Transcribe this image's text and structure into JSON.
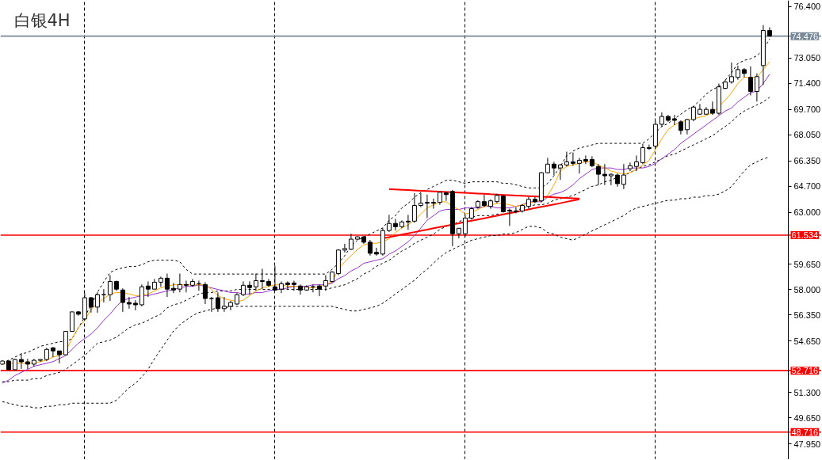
{
  "chart_data": {
    "type": "candlestick",
    "title": "白银4H",
    "tick_labels": "y",
    "grid": "x",
    "categories": [
      null,
      null,
      null,
      null,
      null,
      null,
      null,
      null,
      null,
      null,
      null,
      null,
      null,
      null,
      null,
      null,
      null,
      null,
      null,
      null,
      null,
      null,
      null,
      null,
      null,
      null,
      null,
      null,
      null,
      null,
      null,
      null,
      null,
      null,
      null,
      null,
      null,
      null,
      null,
      null,
      null,
      null,
      null,
      null,
      null,
      null,
      null,
      null,
      null,
      null,
      null,
      null,
      null,
      null,
      null,
      null,
      null,
      null,
      null,
      null,
      null,
      null,
      null,
      null,
      null,
      null,
      null,
      null,
      null,
      null,
      null,
      null,
      null,
      null,
      null,
      null,
      null,
      null,
      null,
      null,
      null,
      null,
      null,
      null,
      null,
      null,
      null,
      null,
      null,
      null,
      null,
      null,
      null,
      null,
      null,
      null,
      null,
      null,
      null,
      null,
      null,
      null,
      null,
      null,
      null,
      null,
      null,
      null,
      null,
      null,
      null,
      null,
      null,
      null,
      null,
      null,
      null,
      null,
      null,
      null,
      null,
      null
    ],
    "series": [
      {
        "type": "line",
        "color": "#000000",
        "line_style": "dashed",
        "values": [
          53.2,
          53.4,
          53.6,
          53.8,
          53.9,
          54.1,
          54.3,
          54.4,
          54.5,
          54.6,
          54.6,
          54.8,
          55.5,
          56.2,
          57.0,
          57.8,
          58.5,
          59.1,
          59.3,
          59.4,
          59.5,
          59.5,
          59.6,
          59.8,
          59.9,
          59.9,
          59.9,
          59.9,
          59.8,
          59.3,
          59.0,
          59.0,
          59.0,
          59.0,
          59.0,
          59.0,
          59.0,
          59.0,
          59.0,
          59.0,
          59.0,
          59.0,
          59.0,
          59.0,
          59.0,
          59.0,
          59.0,
          59.0,
          59.0,
          59.0,
          59.0,
          59.0,
          59.3,
          59.7,
          60.2,
          60.8,
          61.2,
          61.4,
          61.6,
          61.8,
          62.0,
          62.5,
          62.8,
          63.3,
          63.6,
          64.0,
          64.3,
          64.5,
          64.7,
          64.9,
          65.1,
          65.1,
          65.0,
          64.9,
          65.0,
          65.0,
          65.0,
          65.0,
          65.0,
          64.9,
          64.9,
          64.8,
          64.7,
          64.6,
          64.6,
          64.6,
          64.9,
          65.4,
          66.0,
          66.7,
          67.0,
          67.2,
          67.3,
          67.4,
          67.5,
          67.5,
          67.5,
          67.5,
          67.5,
          67.5,
          67.5,
          67.5,
          67.8,
          68.2,
          68.6,
          68.8,
          69.1,
          69.4,
          69.7,
          69.9,
          70.3,
          70.7,
          71.0,
          71.2,
          71.6,
          72.1,
          72.7,
          72.9,
          73.0,
          73.2,
          73.6,
          74.3
        ]
      },
      {
        "type": "line",
        "color": "#000000",
        "line_style": "dashed",
        "values": [
          52.0,
          52.0,
          52.1,
          52.1,
          52.1,
          52.2,
          52.2,
          52.4,
          52.5,
          52.6,
          52.8,
          53.1,
          53.4,
          53.7,
          54.1,
          54.5,
          54.6,
          54.7,
          54.9,
          55.2,
          55.5,
          55.7,
          55.8,
          56.0,
          56.2,
          56.4,
          56.8,
          57.0,
          57.1,
          57.3,
          57.5,
          57.7,
          57.8,
          57.8,
          57.9,
          57.9,
          57.9,
          58.0,
          58.0,
          58.0,
          58.0,
          58.0,
          58.0,
          58.0,
          58.0,
          58.0,
          58.0,
          58.0,
          58.0,
          58.0,
          58.0,
          58.0,
          58.1,
          58.2,
          58.3,
          58.5,
          58.7,
          59.0,
          59.2,
          59.5,
          59.7,
          59.9,
          60.2,
          60.5,
          60.7,
          61.0,
          61.2,
          61.4,
          61.6,
          61.9,
          62.1,
          62.2,
          62.4,
          62.6,
          62.7,
          62.8,
          62.8,
          62.8,
          62.9,
          62.9,
          63.0,
          63.1,
          63.3,
          63.4,
          63.5,
          63.5,
          63.6,
          63.8,
          63.9,
          64.0,
          64.1,
          64.3,
          64.5,
          64.7,
          64.8,
          65.0,
          65.1,
          65.3,
          65.4,
          65.6,
          65.8,
          66.0,
          66.1,
          66.3,
          66.5,
          66.7,
          66.8,
          67.0,
          67.2,
          67.4,
          67.6,
          67.8,
          68.0,
          68.3,
          68.6,
          68.9,
          69.3,
          69.6,
          69.8,
          70.0,
          70.2,
          70.5
        ]
      },
      {
        "type": "line",
        "color": "#000000",
        "line_style": "dashed",
        "values": [
          50.7,
          50.6,
          50.5,
          50.4,
          50.4,
          50.3,
          50.3,
          50.4,
          50.4,
          50.5,
          50.5,
          50.6,
          50.6,
          50.6,
          50.6,
          50.6,
          50.6,
          50.6,
          50.8,
          51.2,
          51.6,
          51.9,
          52.3,
          52.8,
          53.5,
          54.1,
          54.7,
          55.3,
          55.7,
          56.0,
          56.3,
          56.5,
          56.6,
          56.7,
          56.8,
          56.8,
          56.9,
          56.9,
          56.9,
          56.9,
          56.9,
          56.9,
          56.9,
          56.9,
          56.9,
          56.9,
          56.9,
          56.9,
          56.9,
          56.9,
          56.9,
          56.9,
          56.9,
          56.8,
          56.7,
          56.6,
          56.6,
          56.7,
          56.8,
          56.9,
          57.1,
          57.4,
          57.7,
          58.0,
          58.3,
          58.6,
          59.0,
          59.3,
          59.7,
          60.1,
          60.4,
          60.6,
          60.8,
          61.0,
          61.2,
          61.3,
          61.4,
          61.5,
          61.5,
          61.6,
          61.6,
          61.7,
          61.9,
          62.1,
          62.1,
          62.0,
          61.7,
          61.6,
          61.4,
          61.3,
          61.2,
          61.4,
          61.6,
          61.8,
          62.0,
          62.2,
          62.4,
          62.6,
          62.8,
          63.1,
          63.3,
          63.4,
          63.5,
          63.6,
          63.7,
          63.8,
          63.8,
          63.9,
          63.9,
          64.0,
          64.0,
          64.1,
          64.1,
          64.2,
          64.4,
          64.7,
          65.2,
          65.7,
          66.1,
          66.3,
          66.5,
          66.6
        ]
      },
      {
        "type": "line",
        "color": "#9932cc",
        "line_style": "solid",
        "values": [
          51.9,
          52.1,
          52.4,
          52.6,
          52.8,
          53.0,
          53.1,
          53.2,
          53.3,
          53.5,
          53.7,
          54.1,
          54.5,
          54.8,
          55.1,
          55.5,
          56.0,
          56.4,
          56.9,
          57.3,
          57.4,
          57.5,
          57.6,
          57.6,
          57.7,
          57.8,
          57.9,
          58.0,
          58.1,
          58.2,
          58.2,
          58.3,
          58.2,
          58.1,
          58.0,
          57.9,
          57.8,
          57.8,
          57.7,
          57.7,
          57.8,
          57.8,
          57.9,
          58.0,
          58.0,
          58.1,
          58.2,
          58.2,
          58.2,
          58.3,
          58.3,
          58.3,
          58.4,
          58.7,
          58.9,
          59.2,
          59.4,
          59.7,
          59.8,
          59.9,
          60.0,
          60.3,
          60.5,
          60.8,
          61.1,
          61.5,
          62.0,
          62.5,
          62.8,
          63.1,
          63.2,
          63.2,
          63.2,
          63.3,
          63.3,
          63.3,
          63.4,
          63.4,
          63.3,
          63.3,
          63.3,
          63.4,
          63.5,
          63.7,
          63.7,
          63.7,
          64.0,
          64.2,
          64.3,
          64.5,
          64.8,
          65.2,
          65.5,
          65.8,
          65.9,
          65.9,
          65.9,
          65.8,
          65.8,
          65.9,
          65.9,
          65.9,
          66.0,
          66.2,
          66.5,
          66.8,
          67.1,
          67.5,
          67.8,
          68.1,
          68.4,
          68.7,
          69.0,
          69.3,
          69.6,
          69.8,
          70.2,
          70.5,
          70.8,
          70.9,
          71.4,
          72.0
        ]
      },
      {
        "type": "line",
        "color": "#ffa500",
        "line_style": "solid",
        "values": [
          53.2,
          53.2,
          53.2,
          53.2,
          53.2,
          53.2,
          53.3,
          53.4,
          53.6,
          53.7,
          54.0,
          54.8,
          55.5,
          56.0,
          56.7,
          57.1,
          57.4,
          57.7,
          57.8,
          57.8,
          57.7,
          57.6,
          57.6,
          57.7,
          57.9,
          58.1,
          58.2,
          58.3,
          58.3,
          58.3,
          58.3,
          58.3,
          58.3,
          58.0,
          57.6,
          57.4,
          57.3,
          57.2,
          57.3,
          57.6,
          57.9,
          58.1,
          58.2,
          58.3,
          58.3,
          58.2,
          58.2,
          58.2,
          58.1,
          58.1,
          58.2,
          58.3,
          58.5,
          59.3,
          59.8,
          60.2,
          60.6,
          60.9,
          61.0,
          61.0,
          61.1,
          61.3,
          61.7,
          62.0,
          62.2,
          62.5,
          62.9,
          63.3,
          63.5,
          63.7,
          63.7,
          63.4,
          63.2,
          62.9,
          63.0,
          63.2,
          63.4,
          63.5,
          63.6,
          63.6,
          63.5,
          63.4,
          63.5,
          63.6,
          63.7,
          63.8,
          64.1,
          64.8,
          65.7,
          66.0,
          66.1,
          66.2,
          66.3,
          66.3,
          66.1,
          65.9,
          65.7,
          65.6,
          65.5,
          65.6,
          65.8,
          66.1,
          66.4,
          67.1,
          67.8,
          68.4,
          68.7,
          68.9,
          69.0,
          69.1,
          69.2,
          69.3,
          69.5,
          69.9,
          70.3,
          70.8,
          71.4,
          71.8,
          71.8,
          71.8,
          72.3,
          72.8
        ]
      },
      {
        "type": "line",
        "color": "#ff0000",
        "line_style": "solid",
        "values": [
          null,
          null,
          null,
          null,
          null,
          null,
          null,
          null,
          null,
          null,
          null,
          null,
          null,
          null,
          null,
          null,
          null,
          null,
          null,
          null,
          null,
          null,
          null,
          null,
          null,
          null,
          null,
          null,
          null,
          null,
          null,
          null,
          null,
          null,
          null,
          null,
          null,
          null,
          null,
          null,
          null,
          null,
          null,
          null,
          null,
          null,
          null,
          null,
          null,
          null,
          null,
          null,
          null,
          null,
          null,
          null,
          null,
          null,
          null,
          null,
          null,
          64.52,
          64.5,
          64.48,
          64.46,
          64.44,
          64.42,
          64.4,
          64.38,
          64.36,
          64.34,
          64.32,
          64.3,
          64.28,
          64.26,
          64.24,
          64.22,
          64.19,
          64.17,
          64.15,
          64.13,
          64.11,
          64.09,
          64.07,
          64.05,
          64.03,
          64.01,
          63.99,
          63.97,
          63.95,
          63.93,
          63.91,
          null,
          null,
          null,
          null,
          null,
          null,
          null,
          null,
          null,
          null,
          null,
          null,
          null,
          null,
          null,
          null,
          null,
          null,
          null,
          null,
          null,
          null,
          null,
          null,
          null,
          null,
          null,
          null,
          null,
          null
        ]
      },
      {
        "type": "line",
        "color": "#ff0000",
        "line_style": "solid",
        "values": [
          null,
          null,
          null,
          null,
          null,
          null,
          null,
          null,
          null,
          null,
          null,
          null,
          null,
          null,
          null,
          null,
          null,
          null,
          null,
          null,
          null,
          null,
          null,
          null,
          null,
          null,
          null,
          null,
          null,
          null,
          null,
          null,
          null,
          null,
          null,
          null,
          null,
          null,
          null,
          null,
          null,
          null,
          null,
          null,
          null,
          null,
          null,
          null,
          null,
          null,
          null,
          null,
          null,
          null,
          null,
          null,
          null,
          null,
          null,
          null,
          61.32,
          61.4,
          61.48,
          61.57,
          61.65,
          61.73,
          61.81,
          61.89,
          61.98,
          62.06,
          62.14,
          62.22,
          62.3,
          62.39,
          62.47,
          62.55,
          62.63,
          62.71,
          62.79,
          62.88,
          62.96,
          63.04,
          63.12,
          63.2,
          63.29,
          63.37,
          63.45,
          63.53,
          63.61,
          63.7,
          63.78,
          63.86,
          null,
          null,
          null,
          null,
          null,
          null,
          null,
          null,
          null,
          null,
          null,
          null,
          null,
          null,
          null,
          null,
          null,
          null,
          null,
          null,
          null,
          null,
          null,
          null,
          null,
          null,
          null,
          null,
          null,
          null
        ]
      },
      {
        "color": "#000000",
        "ohlc": [
          [
            53.14,
            53.39,
            53.09,
            53.34
          ],
          [
            53.34,
            53.39,
            52.78,
            52.78
          ],
          [
            52.78,
            53.49,
            52.78,
            53.44
          ],
          [
            53.44,
            53.85,
            52.83,
            53.29
          ],
          [
            53.29,
            53.49,
            52.83,
            53.14
          ],
          [
            53.14,
            53.49,
            52.98,
            53.39
          ],
          [
            53.39,
            53.44,
            53.29,
            53.44
          ],
          [
            53.44,
            54.2,
            53.34,
            54.1
          ],
          [
            54.2,
            54.25,
            53.59,
            54.0
          ],
          [
            54.0,
            54.0,
            53.19,
            53.75
          ],
          [
            53.75,
            55.27,
            53.75,
            55.27
          ],
          [
            55.27,
            56.54,
            55.27,
            56.54
          ],
          [
            56.54,
            56.59,
            56.29,
            56.39
          ],
          [
            56.08,
            57.76,
            55.98,
            57.46
          ],
          [
            57.46,
            57.51,
            56.49,
            56.85
          ],
          [
            56.85,
            57.81,
            56.49,
            57.66
          ],
          [
            57.66,
            58.02,
            57.15,
            57.66
          ],
          [
            57.66,
            58.93,
            57.25,
            58.52
          ],
          [
            58.52,
            58.57,
            57.91,
            58.02
          ],
          [
            57.96,
            58.07,
            56.54,
            57.15
          ],
          [
            57.15,
            57.51,
            56.75,
            57.05
          ],
          [
            57.1,
            57.3,
            56.64,
            57.0
          ],
          [
            57.0,
            58.32,
            56.9,
            58.17
          ],
          [
            58.22,
            58.52,
            57.51,
            58.02
          ],
          [
            58.02,
            58.68,
            58.02,
            58.47
          ],
          [
            58.47,
            58.83,
            58.17,
            58.73
          ],
          [
            58.73,
            59.03,
            57.51,
            58.02
          ],
          [
            58.07,
            58.42,
            57.76,
            57.96
          ],
          [
            58.02,
            59.03,
            57.81,
            58.32
          ],
          [
            58.32,
            58.57,
            57.81,
            58.27
          ],
          [
            58.27,
            58.68,
            58.17,
            58.52
          ],
          [
            58.37,
            58.57,
            57.91,
            58.37
          ],
          [
            58.32,
            58.47,
            57.05,
            57.41
          ],
          [
            57.41,
            57.51,
            56.54,
            57.41
          ],
          [
            57.46,
            57.81,
            56.54,
            56.75
          ],
          [
            56.75,
            57.51,
            56.54,
            56.9
          ],
          [
            56.9,
            57.25,
            56.64,
            57.15
          ],
          [
            57.05,
            57.76,
            57.0,
            57.66
          ],
          [
            57.66,
            58.52,
            57.56,
            58.27
          ],
          [
            58.27,
            58.52,
            57.66,
            58.12
          ],
          [
            58.17,
            59.03,
            57.91,
            58.57
          ],
          [
            58.57,
            59.34,
            58.02,
            58.52
          ],
          [
            58.52,
            58.68,
            58.17,
            58.27
          ],
          [
            58.17,
            59.54,
            57.91,
            57.96
          ],
          [
            58.02,
            58.52,
            57.76,
            58.37
          ],
          [
            58.42,
            58.52,
            58.02,
            58.32
          ],
          [
            58.42,
            58.57,
            57.91,
            58.32
          ],
          [
            58.22,
            58.32,
            57.66,
            57.96
          ],
          [
            57.96,
            58.27,
            57.91,
            58.17
          ],
          [
            58.17,
            58.32,
            57.81,
            58.17
          ],
          [
            58.22,
            58.32,
            57.56,
            58.02
          ],
          [
            58.22,
            58.93,
            57.91,
            58.57
          ],
          [
            58.52,
            59.18,
            58.42,
            59.13
          ],
          [
            59.03,
            60.61,
            58.93,
            60.56
          ],
          [
            60.56,
            60.97,
            60.41,
            60.66
          ],
          [
            60.61,
            61.62,
            60.56,
            61.27
          ],
          [
            61.27,
            61.47,
            61.22,
            61.42
          ],
          [
            61.42,
            61.47,
            60.97,
            61.07
          ],
          [
            61.07,
            61.22,
            60.2,
            60.35
          ],
          [
            60.41,
            60.71,
            60.2,
            60.3
          ],
          [
            60.3,
            61.98,
            60.2,
            61.83
          ],
          [
            61.83,
            62.85,
            61.73,
            62.29
          ],
          [
            62.29,
            62.59,
            61.83,
            62.08
          ],
          [
            62.08,
            62.49,
            61.98,
            62.39
          ],
          [
            62.44,
            62.85,
            61.88,
            62.39
          ],
          [
            62.44,
            64.27,
            62.34,
            63.46
          ],
          [
            63.46,
            64.27,
            63.35,
            63.61
          ],
          [
            63.66,
            64.17,
            62.64,
            63.61
          ],
          [
            63.66,
            63.91,
            63.25,
            63.61
          ],
          [
            63.66,
            64.37,
            63.51,
            64.32
          ],
          [
            64.27,
            64.37,
            63.76,
            64.17
          ],
          [
            64.37,
            64.47,
            60.81,
            61.62
          ],
          [
            61.62,
            61.98,
            61.32,
            61.98
          ],
          [
            61.62,
            62.85,
            61.42,
            62.64
          ],
          [
            62.64,
            63.35,
            62.54,
            63.25
          ],
          [
            63.35,
            63.81,
            63.25,
            63.71
          ],
          [
            63.71,
            64.17,
            63.35,
            63.46
          ],
          [
            63.4,
            63.86,
            63.25,
            63.76
          ],
          [
            63.71,
            64.22,
            63.61,
            64.12
          ],
          [
            64.07,
            64.12,
            63.0,
            63.05
          ],
          [
            63.15,
            63.25,
            62.13,
            63.1
          ],
          [
            63.1,
            63.35,
            62.95,
            63.05
          ],
          [
            63.1,
            63.56,
            63.0,
            63.46
          ],
          [
            63.4,
            64.01,
            63.25,
            63.86
          ],
          [
            63.86,
            64.01,
            63.61,
            63.71
          ],
          [
            63.76,
            65.64,
            63.66,
            65.59
          ],
          [
            65.59,
            66.56,
            65.54,
            66.15
          ],
          [
            66.15,
            66.3,
            65.44,
            65.9
          ],
          [
            65.9,
            66.15,
            65.13,
            66.1
          ],
          [
            66.1,
            66.96,
            66.0,
            66.3
          ],
          [
            66.3,
            66.91,
            66.05,
            66.2
          ],
          [
            66.2,
            66.56,
            65.54,
            66.4
          ],
          [
            66.45,
            66.71,
            66.15,
            66.35
          ],
          [
            66.45,
            66.66,
            65.95,
            66.05
          ],
          [
            66.0,
            66.15,
            64.78,
            65.49
          ],
          [
            65.49,
            66.15,
            64.78,
            65.39
          ],
          [
            65.39,
            65.54,
            64.78,
            65.49
          ],
          [
            65.44,
            65.54,
            64.68,
            64.88
          ],
          [
            64.83,
            66.15,
            64.52,
            65.44
          ],
          [
            65.85,
            66.25,
            65.69,
            66.05
          ],
          [
            66.0,
            66.71,
            65.69,
            66.3
          ],
          [
            66.25,
            67.47,
            66.15,
            67.22
          ],
          [
            67.22,
            67.42,
            67.07,
            67.17
          ],
          [
            67.32,
            68.95,
            67.22,
            68.74
          ],
          [
            68.74,
            69.51,
            68.59,
            69.25
          ],
          [
            69.25,
            69.35,
            68.9,
            69.0
          ],
          [
            69.1,
            69.35,
            68.69,
            69.0
          ],
          [
            68.9,
            69.0,
            68.08,
            68.34
          ],
          [
            68.39,
            69.1,
            68.08,
            69.05
          ],
          [
            69.05,
            69.91,
            68.95,
            69.86
          ],
          [
            69.4,
            70.06,
            69.35,
            69.71
          ],
          [
            69.4,
            69.86,
            69.35,
            69.71
          ],
          [
            69.71,
            70.22,
            69.35,
            69.46
          ],
          [
            69.46,
            71.39,
            69.35,
            71.18
          ],
          [
            71.08,
            71.64,
            71.03,
            71.49
          ],
          [
            71.49,
            72.76,
            71.39,
            71.84
          ],
          [
            71.79,
            72.56,
            71.64,
            72.3
          ],
          [
            72.3,
            72.4,
            71.79,
            72.05
          ],
          [
            71.79,
            72.51,
            70.62,
            70.88
          ],
          [
            70.88,
            72.05,
            70.22,
            71.84
          ],
          [
            72.56,
            75.2,
            71.29,
            74.84
          ],
          [
            74.84,
            75.05,
            74.44,
            74.48
          ]
        ]
      }
    ],
    "ylim": [
      46.93,
      76.8
    ],
    "yticks": [
      {
        "value": 76.4,
        "label": "76.400"
      },
      {
        "value": 73.05,
        "label": "73.050"
      },
      {
        "value": 71.4,
        "label": "71.400"
      },
      {
        "value": 69.7,
        "label": "69.700"
      },
      {
        "value": 68.05,
        "label": "68.050"
      },
      {
        "value": 66.35,
        "label": "66.350"
      },
      {
        "value": 64.7,
        "label": "64.700"
      },
      {
        "value": 63.0,
        "label": "63.000"
      },
      {
        "value": 59.65,
        "label": "59.650"
      },
      {
        "value": 58.0,
        "label": "58.000"
      },
      {
        "value": 56.35,
        "label": "56.350"
      },
      {
        "value": 54.65,
        "label": "54.650"
      },
      {
        "value": 51.3,
        "label": "51.300"
      },
      {
        "value": 49.65,
        "label": "49.650"
      },
      {
        "value": 47.95,
        "label": "47.950"
      }
    ],
    "ref_lines": [
      {
        "axis": "y",
        "value": 74.476,
        "label": "74.476",
        "color": "#778899"
      },
      {
        "axis": "y",
        "value": 61.534,
        "label": "61.534",
        "color": "#ff0000"
      },
      {
        "axis": "y",
        "value": 52.716,
        "label": "52.716",
        "color": "#ff0000"
      },
      {
        "axis": "y",
        "value": 48.716,
        "label": "48.716",
        "color": "#ff0000"
      }
    ]
  }
}
